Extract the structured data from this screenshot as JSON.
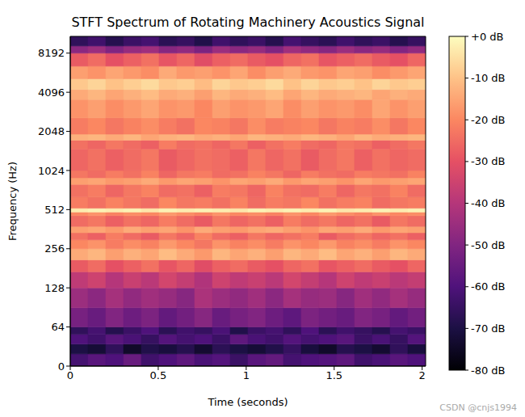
{
  "chart_data": {
    "type": "heatmap",
    "title": "STFT Spectrum of Rotating Machinery Acoustics Signal",
    "xlabel": "Time (seconds)",
    "ylabel": "Frequency (Hz)",
    "log": "y",
    "xlim": [
      0,
      2.02
    ],
    "xticks": [
      0,
      0.5,
      1,
      1.5,
      2
    ],
    "ylim": [
      0,
      11025
    ],
    "yticks": [
      0,
      64,
      128,
      256,
      512,
      1024,
      2048,
      4096,
      8192
    ],
    "time_edges": [
      0,
      0.101,
      0.202,
      0.303,
      0.404,
      0.505,
      0.606,
      0.707,
      0.808,
      0.909,
      1.01,
      1.111,
      1.212,
      1.313,
      1.414,
      1.515,
      1.616,
      1.717,
      1.818,
      1.919,
      2.02
    ],
    "frequency_edges": [
      0,
      20,
      36,
      52,
      64,
      90,
      128,
      170,
      210,
      256,
      300,
      340,
      380,
      460,
      490,
      525,
      640,
      800,
      900,
      1024,
      1500,
      1750,
      1950,
      2600,
      3600,
      4300,
      5200,
      6500,
      8192,
      9300,
      11025
    ],
    "values": [
      [
        -62,
        -58,
        -60,
        -55,
        -63,
        -60,
        -57,
        -61,
        -59,
        -64,
        -58,
        -56,
        -62,
        -60,
        -59,
        -57,
        -63,
        -61,
        -58,
        -60
      ],
      [
        -70,
        -72,
        -66,
        -74,
        -69,
        -71,
        -68,
        -73,
        -67,
        -70,
        -72,
        -69,
        -65,
        -71,
        -74,
        -68,
        -70,
        -73,
        -66,
        -71
      ],
      [
        -60,
        -63,
        -58,
        -61,
        -65,
        -59,
        -62,
        -60,
        -64,
        -57,
        -61,
        -63,
        -59,
        -62,
        -60,
        -58,
        -64,
        -61,
        -65,
        -59
      ],
      [
        -66,
        -62,
        -68,
        -64,
        -60,
        -67,
        -63,
        -65,
        -61,
        -69,
        -64,
        -62,
        -66,
        -60,
        -67,
        -63,
        -65,
        -68,
        -62,
        -64
      ],
      [
        -52,
        -55,
        -50,
        -54,
        -51,
        -56,
        -53,
        -49,
        -55,
        -52,
        -50,
        -54,
        -57,
        -51,
        -53,
        -55,
        -50,
        -52,
        -56,
        -53
      ],
      [
        -45,
        -48,
        -43,
        -47,
        -44,
        -46,
        -49,
        -42,
        -45,
        -47,
        -44,
        -48,
        -43,
        -46,
        -45,
        -49,
        -44,
        -47,
        -43,
        -46
      ],
      [
        -38,
        -35,
        -40,
        -36,
        -39,
        -34,
        -37,
        -41,
        -35,
        -38,
        -36,
        -39,
        -34,
        -37,
        -40,
        -35,
        -38,
        -36,
        -39,
        -37
      ],
      [
        -28,
        -25,
        -30,
        -27,
        -24,
        -29,
        -26,
        -31,
        -27,
        -25,
        -28,
        -30,
        -26,
        -24,
        -29,
        -27,
        -25,
        -28,
        -30,
        -26
      ],
      [
        -14,
        -12,
        -16,
        -13,
        -15,
        -11,
        -14,
        -17,
        -12,
        -15,
        -13,
        -16,
        -12,
        -14,
        -11,
        -15,
        -13,
        -16,
        -12,
        -14
      ],
      [
        -20,
        -18,
        -22,
        -19,
        -21,
        -17,
        -20,
        -23,
        -18,
        -21,
        -19,
        -22,
        -18,
        -20,
        -17,
        -21,
        -19,
        -22,
        -18,
        -20
      ],
      [
        -24,
        -27,
        -22,
        -25,
        -28,
        -23,
        -26,
        -21,
        -25,
        -27,
        -23,
        -26,
        -24,
        -22,
        -28,
        -25,
        -23,
        -26,
        -24,
        -27
      ],
      [
        -16,
        -15,
        -17,
        -14,
        -16,
        -15,
        -18,
        -14,
        -16,
        -17,
        -15,
        -14,
        -16,
        -18,
        -15,
        -16,
        -14,
        -17,
        -15,
        -16
      ],
      [
        -25,
        -23,
        -27,
        -24,
        -26,
        -22,
        -25,
        -28,
        -23,
        -26,
        -24,
        -27,
        -22,
        -25,
        -23,
        -26,
        -24,
        -28,
        -23,
        -25
      ],
      [
        -20,
        -18,
        -21,
        -19,
        -20,
        -17,
        -19,
        -21,
        -18,
        -20,
        -19,
        -21,
        -18,
        -20,
        -17,
        -19,
        -21,
        -18,
        -20,
        -19
      ],
      [
        -3,
        -2,
        -3,
        -2,
        -4,
        -2,
        -3,
        -2,
        -3,
        -4,
        -2,
        -3,
        -2,
        -3,
        -2,
        -4,
        -3,
        -2,
        -3,
        -2
      ],
      [
        -22,
        -24,
        -21,
        -23,
        -25,
        -20,
        -23,
        -22,
        -24,
        -21,
        -25,
        -22,
        -23,
        -20,
        -24,
        -22,
        -21,
        -25,
        -23,
        -22
      ],
      [
        -24,
        -22,
        -26,
        -23,
        -21,
        -25,
        -24,
        -27,
        -22,
        -23,
        -26,
        -21,
        -24,
        -25,
        -22,
        -26,
        -23,
        -24,
        -21,
        -25
      ],
      [
        -16,
        -15,
        -17,
        -16,
        -14,
        -17,
        -15,
        -16,
        -18,
        -15,
        -16,
        -14,
        -17,
        -15,
        -16,
        -18,
        -15,
        -17,
        -16,
        -15
      ],
      [
        -23,
        -25,
        -22,
        -24,
        -21,
        -26,
        -23,
        -22,
        -25,
        -24,
        -21,
        -23,
        -26,
        -22,
        -24,
        -25,
        -22,
        -23,
        -24,
        -21
      ],
      [
        -26,
        -24,
        -27,
        -25,
        -23,
        -28,
        -26,
        -24,
        -25,
        -27,
        -23,
        -26,
        -24,
        -28,
        -25,
        -23,
        -27,
        -24,
        -26,
        -25
      ],
      [
        -24,
        -26,
        -23,
        -25,
        -27,
        -22,
        -25,
        -24,
        -26,
        -23,
        -27,
        -24,
        -22,
        -25,
        -26,
        -23,
        -24,
        -27,
        -25,
        -23
      ],
      [
        -13,
        -12,
        -14,
        -12,
        -15,
        -13,
        -12,
        -14,
        -13,
        -15,
        -12,
        -13,
        -14,
        -12,
        -13,
        -15,
        -12,
        -14,
        -13,
        -12
      ],
      [
        -22,
        -20,
        -23,
        -21,
        -19,
        -22,
        -24,
        -20,
        -21,
        -23,
        -19,
        -22,
        -21,
        -20,
        -23,
        -21,
        -22,
        -19,
        -23,
        -20
      ],
      [
        -18,
        -16,
        -19,
        -17,
        -15,
        -18,
        -17,
        -20,
        -16,
        -18,
        -17,
        -15,
        -19,
        -16,
        -18,
        -17,
        -19,
        -15,
        -18,
        -16
      ],
      [
        -14,
        -12,
        -15,
        -13,
        -11,
        -14,
        -13,
        -16,
        -12,
        -14,
        -13,
        -11,
        -15,
        -12,
        -14,
        -13,
        -12,
        -15,
        -13,
        -14
      ],
      [
        -9,
        -7,
        -10,
        -8,
        -6,
        -9,
        -8,
        -11,
        -7,
        -9,
        -8,
        -6,
        -10,
        -7,
        -9,
        -8,
        -10,
        -7,
        -9,
        -8
      ],
      [
        -16,
        -18,
        -15,
        -17,
        -19,
        -14,
        -17,
        -16,
        -18,
        -15,
        -19,
        -16,
        -14,
        -17,
        -18,
        -15,
        -16,
        -19,
        -17,
        -15
      ],
      [
        -28,
        -25,
        -30,
        -27,
        -24,
        -29,
        -26,
        -31,
        -27,
        -25,
        -28,
        -30,
        -26,
        -24,
        -29,
        -27,
        -25,
        -28,
        -30,
        -26
      ],
      [
        -48,
        -45,
        -50,
        -46,
        -44,
        -49,
        -47,
        -51,
        -45,
        -48,
        -46,
        -50,
        -44,
        -47,
        -49,
        -45,
        -48,
        -46,
        -50,
        -47
      ],
      [
        -66,
        -63,
        -68,
        -64,
        -62,
        -67,
        -65,
        -69,
        -63,
        -66,
        -64,
        -68,
        -62,
        -65,
        -67,
        -63,
        -66,
        -64,
        -68,
        -65
      ]
    ],
    "colorbar_range": [
      -80,
      0
    ],
    "colorbar_ticks": [
      {
        "value": 0,
        "label": "+0 dB"
      },
      {
        "value": -10,
        "label": "-10 dB"
      },
      {
        "value": -20,
        "label": "-20 dB"
      },
      {
        "value": -30,
        "label": "-30 dB"
      },
      {
        "value": -40,
        "label": "-40 dB"
      },
      {
        "value": -50,
        "label": "-50 dB"
      },
      {
        "value": -60,
        "label": "-60 dB"
      },
      {
        "value": -70,
        "label": "-70 dB"
      },
      {
        "value": -80,
        "label": "-80 dB"
      }
    ],
    "annotations": [
      "CSDN @cnjs1994"
    ]
  }
}
